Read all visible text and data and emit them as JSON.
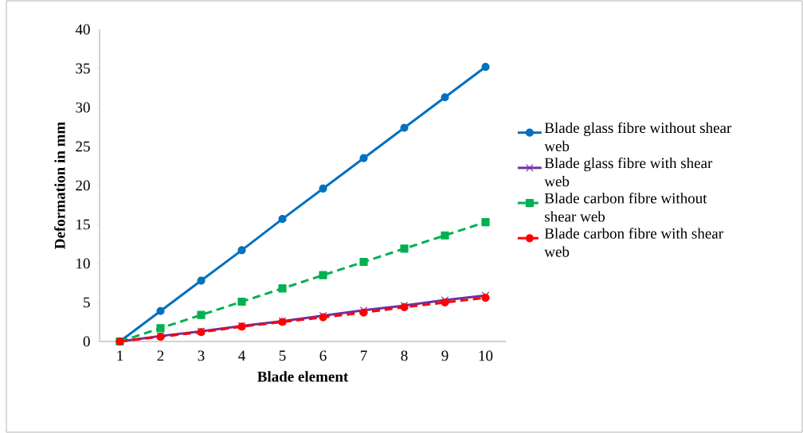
{
  "chart_data": {
    "type": "line",
    "xlabel": "Blade element",
    "ylabel": "Deformation in mm",
    "categories": [
      "1",
      "2",
      "3",
      "4",
      "5",
      "6",
      "7",
      "8",
      "9",
      "10"
    ],
    "series": [
      {
        "name": "Blade glass fibre without shear web",
        "color": "#0070c0",
        "marker": "circle",
        "line_style": "solid",
        "values": [
          0,
          3.9,
          7.8,
          11.7,
          15.7,
          19.6,
          23.5,
          27.4,
          31.3,
          35.2
        ]
      },
      {
        "name": "Blade glass fibre with shear web",
        "color": "#7030a0",
        "marker": "cross",
        "line_style": "solid",
        "values": [
          0,
          0.7,
          1.3,
          2.0,
          2.6,
          3.3,
          4.0,
          4.6,
          5.3,
          5.9
        ]
      },
      {
        "name": "Blade carbon fibre without shear web",
        "color": "#00b050",
        "marker": "square",
        "line_style": "dashed",
        "values": [
          0,
          1.7,
          3.4,
          5.1,
          6.8,
          8.5,
          10.2,
          11.9,
          13.6,
          15.3
        ]
      },
      {
        "name": "Blade carbon fibre with shear web",
        "color": "#ff0000",
        "marker": "circle",
        "line_style": "dashed",
        "values": [
          0,
          0.6,
          1.2,
          1.9,
          2.5,
          3.1,
          3.7,
          4.4,
          5.0,
          5.6
        ]
      }
    ],
    "ylim": [
      0,
      40
    ],
    "yticks": [
      0,
      5,
      10,
      15,
      20,
      25,
      30,
      35,
      40
    ],
    "grid": false,
    "legend": "right"
  }
}
